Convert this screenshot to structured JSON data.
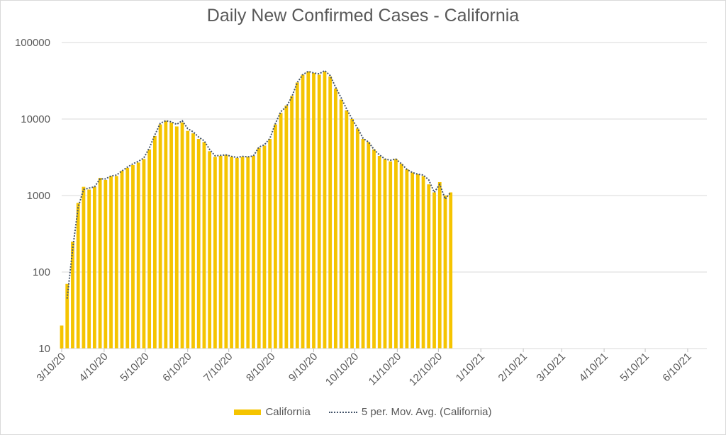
{
  "chart_data": {
    "type": "bar",
    "title": "Daily New Confirmed Cases - California",
    "yscale": "log",
    "ylim": [
      10,
      100000
    ],
    "y_ticks": [
      "10",
      "100",
      "1000",
      "10000",
      "100000"
    ],
    "x_ticks": [
      "3/10/20",
      "4/10/20",
      "5/10/20",
      "6/10/20",
      "7/10/20",
      "8/10/20",
      "9/10/20",
      "10/10/20",
      "11/10/20",
      "12/10/20",
      "1/10/21",
      "2/10/21",
      "3/10/21",
      "4/10/21",
      "5/10/21",
      "6/10/21"
    ],
    "x_range": [
      "2020-03-10",
      "2021-06-24"
    ],
    "grid": true,
    "legend_position": "bottom",
    "series": [
      {
        "name": "California",
        "kind": "bar",
        "color": "#f5c400",
        "x_start": "2020-03-10",
        "step_days": 4,
        "values": [
          20,
          70,
          250,
          800,
          1300,
          1200,
          1300,
          1700,
          1600,
          1800,
          1800,
          2100,
          2300,
          2500,
          2700,
          3000,
          4000,
          6000,
          8500,
          9500,
          9000,
          8000,
          9000,
          7000,
          6500,
          5500,
          5000,
          3800,
          3200,
          3300,
          3400,
          3200,
          3100,
          3200,
          3200,
          3300,
          4200,
          4500,
          5500,
          8500,
          12000,
          15000,
          20000,
          30000,
          38000,
          42000,
          40000,
          38000,
          42000,
          36000,
          25000,
          18000,
          13000,
          10000,
          7500,
          5500,
          5000,
          4000,
          3300,
          3000,
          2800,
          3000,
          2600,
          2200,
          2000,
          1900,
          1800,
          1400,
          1100,
          1500,
          1000,
          1100
        ]
      },
      {
        "name": "5 per. Mov. Avg. (California)",
        "kind": "line",
        "style": "dotted",
        "color": "#44546a",
        "x_start": "2020-03-10",
        "step_days": 4,
        "values": [
          null,
          45,
          200,
          700,
          1200,
          1250,
          1300,
          1650,
          1650,
          1800,
          1850,
          2100,
          2350,
          2600,
          2800,
          3100,
          4200,
          6200,
          8800,
          9500,
          9200,
          8500,
          9500,
          7500,
          6800,
          5800,
          5200,
          4000,
          3300,
          3350,
          3400,
          3250,
          3150,
          3250,
          3200,
          3300,
          4300,
          4600,
          5600,
          8700,
          12500,
          14500,
          19500,
          30000,
          38000,
          42000,
          40000,
          39000,
          43000,
          37000,
          26000,
          19000,
          13500,
          10000,
          7600,
          5600,
          5000,
          4000,
          3400,
          3000,
          2900,
          3000,
          2600,
          2200,
          2000,
          1900,
          1850,
          1600,
          1100,
          1400,
          900,
          1100
        ]
      }
    ]
  }
}
